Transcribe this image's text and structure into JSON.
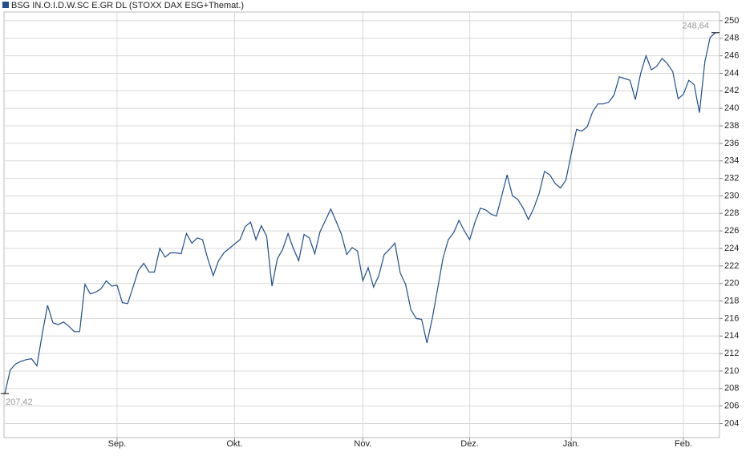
{
  "chart_data": {
    "type": "line",
    "categories": [
      null,
      null,
      null,
      null,
      null,
      null,
      null,
      null,
      null,
      null,
      null,
      null,
      null,
      null,
      null,
      null,
      null,
      null,
      null,
      null,
      null,
      "Sep.",
      null,
      null,
      null,
      null,
      null,
      null,
      null,
      null,
      null,
      null,
      null,
      null,
      null,
      null,
      null,
      null,
      null,
      null,
      null,
      null,
      null,
      "Okt.",
      null,
      null,
      null,
      null,
      null,
      null,
      null,
      null,
      null,
      null,
      null,
      null,
      null,
      null,
      null,
      null,
      null,
      null,
      null,
      null,
      null,
      null,
      null,
      "Nov.",
      null,
      null,
      null,
      null,
      null,
      null,
      null,
      null,
      null,
      null,
      null,
      null,
      null,
      null,
      null,
      null,
      null,
      null,
      null,
      "Dez.",
      null,
      null,
      null,
      null,
      null,
      null,
      null,
      null,
      null,
      null,
      null,
      null,
      null,
      null,
      null,
      null,
      null,
      null,
      "Jan.",
      null,
      null,
      null,
      null,
      null,
      null,
      null,
      null,
      null,
      null,
      null,
      null,
      null,
      null,
      null,
      null,
      null,
      null,
      null,
      null,
      "Feb.",
      null,
      null,
      null,
      null,
      null,
      null
    ],
    "series": [
      {
        "name": "BSG IN.O.I.D.W.SC E.GR DL (STOXX DAX ESG+Themat.)",
        "color": "#1f4e8c",
        "values": [
          207.42,
          210.1,
          210.8,
          211.1,
          211.3,
          211.4,
          210.6,
          214.2,
          217.5,
          215.5,
          215.3,
          215.6,
          215.1,
          214.5,
          214.5,
          219.9,
          218.8,
          219.0,
          219.4,
          220.3,
          219.7,
          219.8,
          217.8,
          217.7,
          219.6,
          221.5,
          222.3,
          221.3,
          221.3,
          224.0,
          223.0,
          223.5,
          223.5,
          223.4,
          225.7,
          224.6,
          225.2,
          225.0,
          222.8,
          220.9,
          222.6,
          223.5,
          224.0,
          224.5,
          225.0,
          226.5,
          227.0,
          225.0,
          226.6,
          225.4,
          219.7,
          222.8,
          223.9,
          225.7,
          224.0,
          222.6,
          225.6,
          225.2,
          223.4,
          225.9,
          227.2,
          228.5,
          227.1,
          225.6,
          223.3,
          224.1,
          223.7,
          220.3,
          221.8,
          219.6,
          220.9,
          223.3,
          223.9,
          224.6,
          221.2,
          219.9,
          217.0,
          216.0,
          215.9,
          213.2,
          216.0,
          219.4,
          222.9,
          225.0,
          225.8,
          227.2,
          226.0,
          225.0,
          227.0,
          228.6,
          228.4,
          227.9,
          227.7,
          230.0,
          232.4,
          230.0,
          229.6,
          228.6,
          227.3,
          228.6,
          230.3,
          232.8,
          232.4,
          231.4,
          230.9,
          231.8,
          234.8,
          237.6,
          237.4,
          237.9,
          239.6,
          240.5,
          240.5,
          240.7,
          241.5,
          243.6,
          243.4,
          243.2,
          241.0,
          244.0,
          246.0,
          244.4,
          244.8,
          245.7,
          245.1,
          244.2,
          241.1,
          241.6,
          243.2,
          242.7,
          239.5,
          245.3,
          248.1,
          248.64
        ],
        "value_labels": [
          "207,42",
          null,
          null,
          null,
          null,
          null,
          null,
          null,
          null,
          null,
          null,
          null,
          null,
          null,
          null,
          null,
          null,
          null,
          null,
          null,
          null,
          null,
          null,
          null,
          null,
          null,
          null,
          null,
          null,
          null,
          null,
          null,
          null,
          null,
          null,
          null,
          null,
          null,
          null,
          null,
          null,
          null,
          null,
          null,
          null,
          null,
          null,
          null,
          null,
          null,
          null,
          null,
          null,
          null,
          null,
          null,
          null,
          null,
          null,
          null,
          null,
          null,
          null,
          null,
          null,
          null,
          null,
          null,
          null,
          null,
          null,
          null,
          null,
          null,
          null,
          null,
          null,
          null,
          null,
          null,
          null,
          null,
          null,
          null,
          null,
          null,
          null,
          null,
          null,
          null,
          null,
          null,
          null,
          null,
          null,
          null,
          null,
          null,
          null,
          null,
          null,
          null,
          null,
          null,
          null,
          null,
          null,
          null,
          null,
          null,
          null,
          null,
          null,
          null,
          null,
          null,
          null,
          null,
          null,
          null,
          null,
          null,
          null,
          null,
          null,
          null,
          null,
          null,
          null,
          null,
          null,
          null,
          null,
          "248,64"
        ]
      }
    ],
    "ylim": [
      202.4,
      251
    ],
    "yticks": [
      204,
      206,
      208,
      210,
      212,
      214,
      216,
      218,
      220,
      222,
      224,
      226,
      228,
      230,
      232,
      234,
      236,
      238,
      240,
      242,
      244,
      246,
      248,
      250
    ],
    "grid": true
  }
}
